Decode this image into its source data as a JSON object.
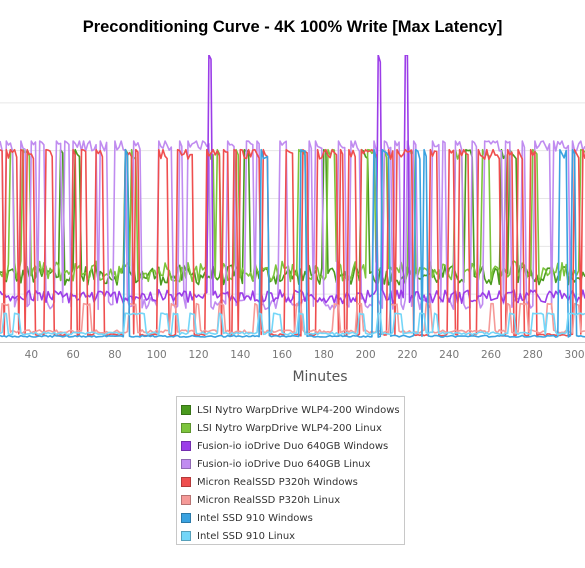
{
  "chart_data": {
    "type": "line",
    "title": "Preconditioning Curve - 4K 100% Write [Max Latency]",
    "xlabel": "Minutes",
    "ylabel": "",
    "xlim": [
      25,
      305
    ],
    "ylim": [
      0,
      600
    ],
    "x_ticks": [
      40,
      60,
      80,
      100,
      120,
      140,
      160,
      180,
      200,
      220,
      240,
      260,
      280,
      300
    ],
    "y_gridlines": [
      100,
      200,
      300,
      400,
      500
    ],
    "grid": true,
    "legend_position": "bottom",
    "series": [
      {
        "name": "LSI Nytro WarpDrive WLP4-200 Windows",
        "color": "#4a9a1e",
        "baseline": 140,
        "spike": 402,
        "spike_rate": 0.03
      },
      {
        "name": "LSI Nytro WarpDrive WLP4-200 Linux",
        "color": "#7cc43c",
        "baseline": 148,
        "spike": 402,
        "spike_rate": 0.05
      },
      {
        "name": "Fusion-io ioDrive Duo 640GB Windows",
        "color": "#9b3de8",
        "baseline": 95,
        "spike": 600,
        "spike_rate": 0.01
      },
      {
        "name": "Fusion-io ioDrive Duo 640GB Linux",
        "color": "#c08cf0",
        "baseline": 80,
        "spike": 420,
        "spike_rate": 0.22
      },
      {
        "name": "Micron RealSSD P320h Windows",
        "color": "#ef4e4e",
        "baseline": 15,
        "spike": 402,
        "spike_rate": 0.35
      },
      {
        "name": "Micron RealSSD P320h Linux",
        "color": "#f59a98",
        "baseline": 22,
        "spike": 80,
        "spike_rate": 0.1
      },
      {
        "name": "Intel SSD 910 Windows",
        "color": "#3aa2e0",
        "baseline": 12,
        "spike": 402,
        "spike_rate": 0.03
      },
      {
        "name": "Intel SSD 910 Linux",
        "color": "#74d6f8",
        "baseline": 18,
        "spike": 60,
        "spike_rate": 0.08
      }
    ]
  }
}
